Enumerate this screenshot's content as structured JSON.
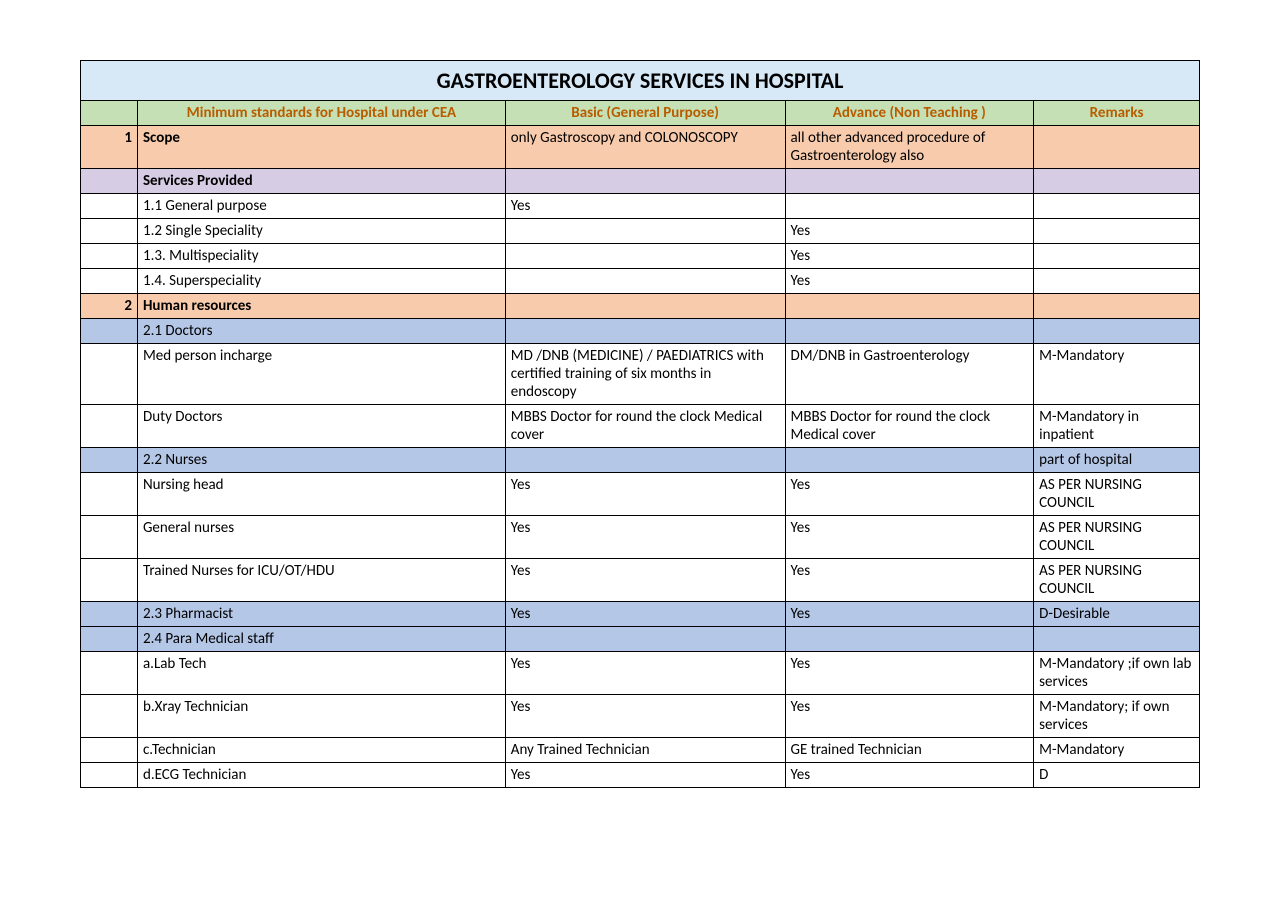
{
  "title": "GASTROENTEROLOGY SERVICES IN HOSPITAL",
  "headers": {
    "col1": "Minimum standards for Hospital under CEA",
    "col2": "Basic (General Purpose)",
    "col3": "Advance (Non Teaching )",
    "col4": "Remarks"
  },
  "rows": [
    {
      "num": "1",
      "c1": "Scope",
      "c2": "only Gastroscopy and COLONOSCOPY",
      "c3": "all other advanced procedure of Gastroenterology also",
      "c4": "",
      "cls": "orange",
      "bold1": true
    },
    {
      "num": "",
      "c1": "Services Provided",
      "c2": "",
      "c3": "",
      "c4": "",
      "cls": "lav"
    },
    {
      "num": "",
      "c1": "1.1 General purpose",
      "c2": "Yes",
      "c3": "",
      "c4": "",
      "cls": ""
    },
    {
      "num": "",
      "c1": "1.2 Single Speciality",
      "c2": "",
      "c3": "Yes",
      "c4": "",
      "cls": ""
    },
    {
      "num": "",
      "c1": "1.3. Multispeciality",
      "c2": "",
      "c3": "Yes",
      "c4": "",
      "cls": ""
    },
    {
      "num": "",
      "c1": "1.4. Superspeciality",
      "c2": "",
      "c3": "Yes",
      "c4": "",
      "cls": ""
    },
    {
      "num": "2",
      "c1": "Human resources",
      "c2": "",
      "c3": "",
      "c4": "",
      "cls": "orange",
      "bold1": true
    },
    {
      "num": "",
      "c1": "2.1 Doctors",
      "c2": "",
      "c3": "",
      "c4": "",
      "cls": "blue"
    },
    {
      "num": "",
      "c1": "Med person incharge",
      "c2": "MD /DNB (MEDICINE)  / PAEDIATRICS with certified training of six months in endoscopy",
      "c3": "DM/DNB in Gastroenterology",
      "c4": "M-Mandatory",
      "cls": ""
    },
    {
      "num": "",
      "c1": "Duty Doctors",
      "c2": "MBBS Doctor for round the clock Medical cover",
      "c3": "MBBS Doctor for round the clock Medical cover",
      "c4": "M-Mandatory in inpatient",
      "cls": ""
    },
    {
      "num": "",
      "c1": "2.2 Nurses",
      "c2": "",
      "c3": "",
      "c4": "part of hospital",
      "cls": "blue"
    },
    {
      "num": "",
      "c1": "Nursing head",
      "c2": "Yes",
      "c3": "Yes",
      "c4": "AS PER NURSING COUNCIL",
      "cls": ""
    },
    {
      "num": "",
      "c1": "General nurses",
      "c2": "Yes",
      "c3": "Yes",
      "c4": "AS PER NURSING COUNCIL",
      "cls": ""
    },
    {
      "num": "",
      "c1": "Trained Nurses for ICU/OT/HDU",
      "c2": "Yes",
      "c3": "Yes",
      "c4": "AS PER NURSING COUNCIL",
      "cls": ""
    },
    {
      "num": "",
      "c1": "2.3 Pharmacist",
      "c2": "Yes",
      "c3": "Yes",
      "c4": "D-Desirable",
      "cls": "blue"
    },
    {
      "num": "",
      "c1": "2.4 Para Medical staff",
      "c2": "",
      "c3": "",
      "c4": "",
      "cls": "blue"
    },
    {
      "num": "",
      "c1": "a.Lab Tech",
      "c2": "Yes",
      "c3": "Yes",
      "c4": "M-Mandatory ;if own lab services",
      "cls": ""
    },
    {
      "num": "",
      "c1": "b.Xray Technician",
      "c2": "Yes",
      "c3": "Yes",
      "c4": "M-Mandatory; if own services",
      "cls": ""
    },
    {
      "num": "",
      "c1": "c.Technician",
      "c2": "Any Trained Technician",
      "c3": "GE trained Technician",
      "c4": "M-Mandatory",
      "cls": ""
    },
    {
      "num": "",
      "c1": "d.ECG Technician",
      "c2": "Yes",
      "c3": "Yes",
      "c4": "D",
      "cls": ""
    }
  ],
  "colors": {
    "title_bg": "#d7e9f7",
    "header_bg": "#c5e0b4",
    "header_text": "#b85c00",
    "orange_bg": "#f8cbad",
    "lavender_bg": "#d6cde4",
    "blue_bg": "#b4c7e7",
    "border": "#000000"
  }
}
